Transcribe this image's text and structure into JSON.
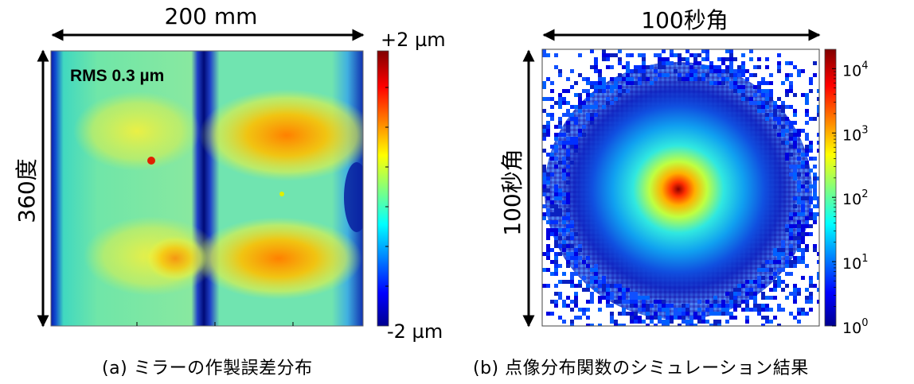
{
  "panel_a": {
    "width_label": "200 mm",
    "height_label": "360度",
    "rms_label": "RMS 0.3 µm",
    "colorbar_max_label": "+2 µm",
    "colorbar_min_label": "-2 µm",
    "caption": "(a) ミラーの作製誤差分布"
  },
  "panel_b": {
    "width_label": "100秒角",
    "height_label": "100秒角",
    "colorbar_scale": "log",
    "colorbar_ticks": [
      {
        "base": "10",
        "exp": "4",
        "value": 10000
      },
      {
        "base": "10",
        "exp": "3",
        "value": 1000
      },
      {
        "base": "10",
        "exp": "2",
        "value": 100
      },
      {
        "base": "10",
        "exp": "1",
        "value": 10
      },
      {
        "base": "10",
        "exp": "0",
        "value": 1
      }
    ],
    "caption": "(b) 点像分布関数のシミュレーション結果"
  },
  "colors": {
    "colormap": [
      "#00008f",
      "#0000ff",
      "#00ffff",
      "#ffff00",
      "#ff0000",
      "#800000"
    ]
  }
}
